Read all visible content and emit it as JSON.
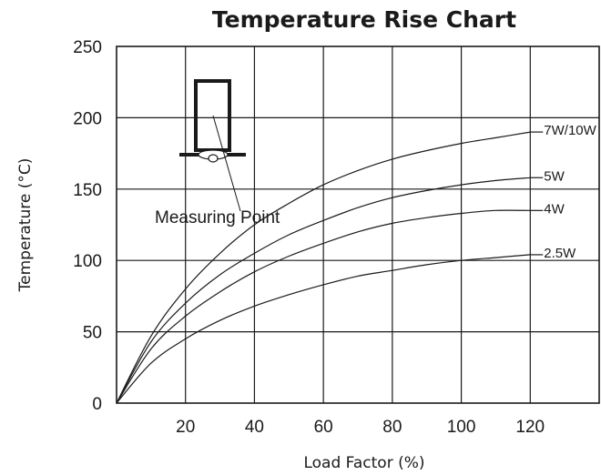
{
  "chart_data": {
    "type": "line",
    "title": "Temperature Rise Chart",
    "xlabel": "Load Factor (%)",
    "ylabel": "Temperature (°C)",
    "xlim": [
      0,
      140
    ],
    "ylim": [
      0,
      250
    ],
    "x_ticks": [
      20,
      40,
      60,
      80,
      100,
      120
    ],
    "y_ticks": [
      0,
      50,
      100,
      150,
      200,
      250
    ],
    "grid": true,
    "annotation": "Measuring Point",
    "series": [
      {
        "name": "7W/10W",
        "x": [
          0,
          10,
          20,
          30,
          40,
          50,
          60,
          70,
          80,
          90,
          100,
          110,
          120
        ],
        "y": [
          0,
          47,
          80,
          105,
          125,
          140,
          153,
          163,
          171,
          177,
          182,
          186,
          190
        ]
      },
      {
        "name": "5W",
        "x": [
          0,
          10,
          20,
          30,
          40,
          50,
          60,
          70,
          80,
          90,
          100,
          110,
          120
        ],
        "y": [
          0,
          43,
          70,
          90,
          105,
          118,
          128,
          137,
          144,
          149,
          153,
          156,
          158
        ]
      },
      {
        "name": "4W",
        "x": [
          0,
          10,
          20,
          30,
          40,
          50,
          60,
          70,
          80,
          90,
          100,
          110,
          120
        ],
        "y": [
          0,
          38,
          61,
          78,
          92,
          103,
          112,
          120,
          126,
          130,
          133,
          135,
          135
        ]
      },
      {
        "name": "2.5W",
        "x": [
          0,
          10,
          20,
          30,
          40,
          50,
          60,
          70,
          80,
          90,
          100,
          110,
          120
        ],
        "y": [
          0,
          28,
          45,
          58,
          68,
          76,
          83,
          89,
          93,
          97,
          100,
          102,
          104
        ]
      }
    ]
  }
}
